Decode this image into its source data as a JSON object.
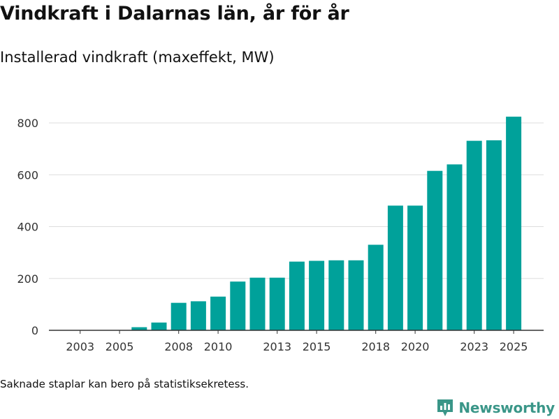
{
  "title": "Vindkraft i Dalarnas län, år för år",
  "subtitle": "Installerad vindkraft (maxeffekt, MW)",
  "footnote": "Saknade staplar kan bero på statistiksekretess.",
  "brand": "Newsworthy",
  "colors": {
    "bar": "#00a19a",
    "grid": "#dddddd",
    "axis": "#333333",
    "brand": "#3a9688"
  },
  "chart_data": {
    "type": "bar",
    "title": "Vindkraft i Dalarnas län, år för år",
    "subtitle": "Installerad vindkraft (maxeffekt, MW)",
    "xlabel": "",
    "ylabel": "",
    "ylim": [
      0,
      840
    ],
    "yticks": [
      0,
      200,
      400,
      600,
      800
    ],
    "categories": [
      "2002",
      "2003",
      "2004",
      "2005",
      "2006",
      "2007",
      "2008",
      "2009",
      "2010",
      "2011",
      "2012",
      "2013",
      "2014",
      "2015",
      "2016",
      "2017",
      "2018",
      "2019",
      "2020",
      "2021",
      "2022",
      "2023",
      "2024",
      "2025"
    ],
    "xtick_labels": [
      "2003",
      "2005",
      "2008",
      "2010",
      "2013",
      "2015",
      "2018",
      "2020",
      "2023",
      "2025"
    ],
    "values": [
      0,
      0,
      0,
      0,
      12,
      30,
      106,
      112,
      130,
      188,
      203,
      203,
      265,
      268,
      270,
      270,
      330,
      481,
      481,
      615,
      640,
      731,
      733,
      824
    ]
  }
}
